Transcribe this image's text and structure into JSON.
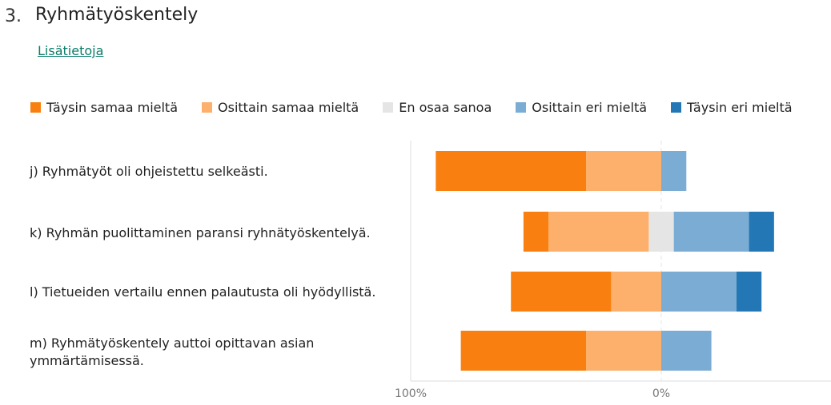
{
  "question": {
    "number": "3.",
    "title": "Ryhmätyöskentely",
    "more_info_link": "Lisätietoja"
  },
  "colors": {
    "taysin_samaa": "#f98010",
    "osittain_samaa": "#fdb06b",
    "en_osaa": "#e5e5e5",
    "osittain_eri": "#7bacd3",
    "taysin_eri": "#2277b4"
  },
  "chart_data": {
    "type": "bar",
    "orientation": "horizontal-diverging",
    "categories": [
      "j) Ryhmätyöt oli ohjeistettu selkeästi.",
      "k) Ryhmän puolittaminen paransi ryhnätyöskentelyä.",
      "l) Tietueiden vertailu ennen palautusta oli hyödyllistä.",
      "m) Ryhmätyöskentely auttoi opittavan asian ymmärtämisessä."
    ],
    "series": [
      {
        "name": "Täysin samaa mieltä",
        "color": "#f98010",
        "side": "left",
        "values": [
          60,
          10,
          40,
          50
        ]
      },
      {
        "name": "Osittain samaa mieltä",
        "color": "#fdb06b",
        "side": "left",
        "values": [
          30,
          40,
          20,
          30
        ]
      },
      {
        "name": "En osaa sanoa",
        "color": "#e5e5e5",
        "side": "center",
        "values": [
          0,
          10,
          0,
          0
        ]
      },
      {
        "name": "Osittain eri mieltä",
        "color": "#7bacd3",
        "side": "right",
        "values": [
          10,
          30,
          30,
          20
        ]
      },
      {
        "name": "Täysin eri mieltä",
        "color": "#2277b4",
        "side": "right",
        "values": [
          0,
          10,
          10,
          0
        ]
      }
    ],
    "x_tick_labels": [
      "100%",
      "0%"
    ],
    "legend_position": "top",
    "grid": false
  }
}
